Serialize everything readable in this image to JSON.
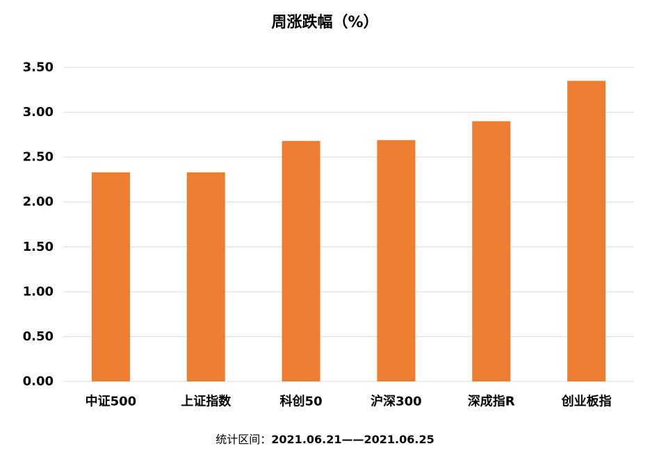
{
  "chart_data": {
    "type": "bar",
    "title": "周涨跌幅（%）",
    "categories": [
      "中证500",
      "上证指数",
      "科创50",
      "沪深300",
      "深成指R",
      "创业板指"
    ],
    "series": [
      {
        "values": [
          2.33,
          2.33,
          2.68,
          2.69,
          2.9,
          3.35
        ]
      }
    ],
    "ylim": [
      0,
      3.5
    ],
    "y_ticks": [
      "0.00",
      "0.50",
      "1.00",
      "1.50",
      "2.00",
      "2.50",
      "3.00",
      "3.50"
    ],
    "grid": true,
    "legend": "none",
    "xlabel": "",
    "ylabel": "",
    "bar_color": "#ED7D31",
    "grid_color": "#D9D9D9"
  },
  "footnote": {
    "prefix": "统计区间：",
    "range": "2021.06.21——2021.06.25"
  }
}
